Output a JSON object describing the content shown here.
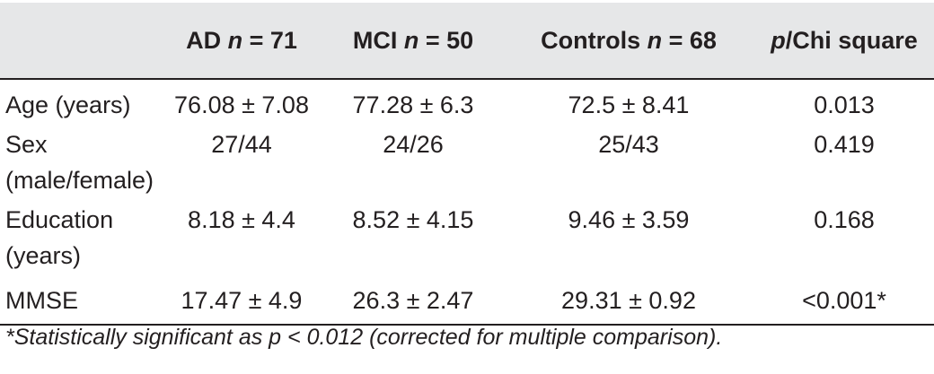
{
  "table": {
    "columns": [
      {
        "label_prefix": "",
        "label_italic": "",
        "label_suffix": ""
      },
      {
        "label_prefix": "AD ",
        "label_italic": "n",
        "label_suffix": " = 71"
      },
      {
        "label_prefix": "MCI ",
        "label_italic": "n",
        "label_suffix": " = 50"
      },
      {
        "label_prefix": "Controls ",
        "label_italic": "n",
        "label_suffix": " = 68"
      },
      {
        "label_prefix": "",
        "label_italic": "p",
        "label_suffix": "/Chi square"
      }
    ],
    "rows": [
      {
        "label": "Age (years)",
        "ad": "76.08 ± 7.08",
        "mci": "77.28 ± 6.3",
        "controls": "72.5 ± 8.41",
        "p": "0.013"
      },
      {
        "label": "Sex (male/female)",
        "ad": "27/44",
        "mci": "24/26",
        "controls": "25/43",
        "p": "0.419"
      },
      {
        "label": "Education (years)",
        "ad": "8.18 ± 4.4",
        "mci": "8.52 ± 4.15",
        "controls": "9.46 ± 3.59",
        "p": "0.168"
      },
      {
        "label": "MMSE",
        "ad": "17.47 ± 4.9",
        "mci": "26.3 ± 2.47",
        "controls": "29.31 ± 0.92",
        "p": "<0.001*"
      }
    ]
  },
  "footnote": "*Statistically significant as p < 0.012 (corrected for multiple comparison).",
  "colors": {
    "header_background": "#e6e7e8",
    "text": "#231f20",
    "rule": "#231f20"
  }
}
